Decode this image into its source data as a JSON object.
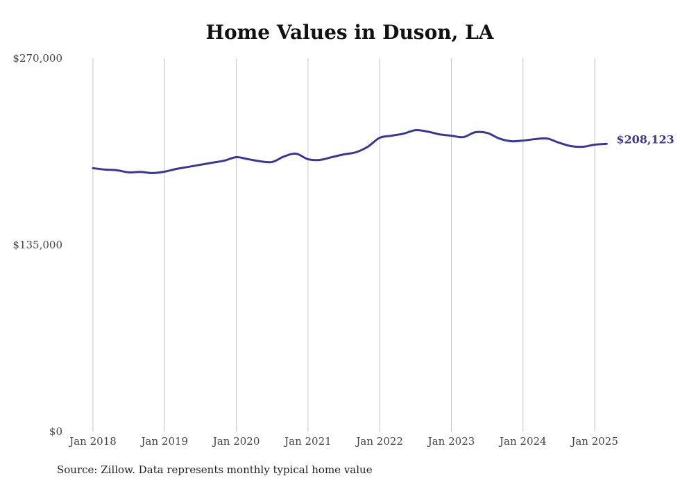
{
  "chart_data": {
    "type": "line",
    "title": "Home Values in Duson, LA",
    "source": "Source: Zillow. Data represents monthly typical home value",
    "ylim": [
      0,
      270000
    ],
    "y_ticks": [
      "$0",
      "$135,000",
      "$270,000"
    ],
    "y_tick_values": [
      0,
      135000,
      270000
    ],
    "x_tick_labels": [
      "Jan 2018",
      "Jan 2019",
      "Jan 2020",
      "Jan 2021",
      "Jan 2022",
      "Jan 2023",
      "Jan 2024",
      "Jan 2025"
    ],
    "x_tick_dates": [
      "2018-01",
      "2019-01",
      "2020-01",
      "2021-01",
      "2022-01",
      "2023-01",
      "2024-01",
      "2025-01"
    ],
    "grid": "vertical",
    "line_color": "#3a3697",
    "end_label": "$208,123",
    "series": [
      {
        "x": [
          "2018-01",
          "2018-03",
          "2018-05",
          "2018-07",
          "2018-09",
          "2018-11",
          "2019-01",
          "2019-03",
          "2019-05",
          "2019-07",
          "2019-09",
          "2019-11",
          "2020-01",
          "2020-03",
          "2020-05",
          "2020-07",
          "2020-09",
          "2020-11",
          "2021-01",
          "2021-03",
          "2021-05",
          "2021-07",
          "2021-09",
          "2021-11",
          "2022-01",
          "2022-03",
          "2022-05",
          "2022-07",
          "2022-09",
          "2022-11",
          "2023-01",
          "2023-03",
          "2023-05",
          "2023-07",
          "2023-09",
          "2023-11",
          "2024-01",
          "2024-03",
          "2024-05",
          "2024-07",
          "2024-09",
          "2024-11",
          "2025-01",
          "2025-03"
        ],
        "values": [
          190500,
          189500,
          189000,
          187500,
          187800,
          187000,
          188000,
          190000,
          191500,
          193000,
          194500,
          196000,
          198500,
          197000,
          195500,
          195000,
          199000,
          201000,
          197000,
          196500,
          198500,
          200500,
          202000,
          206000,
          212500,
          214000,
          215500,
          218000,
          217000,
          215000,
          214000,
          213000,
          216500,
          216000,
          212000,
          210000,
          210500,
          211500,
          212000,
          209000,
          206500,
          206000,
          207500,
          208123
        ]
      }
    ]
  }
}
